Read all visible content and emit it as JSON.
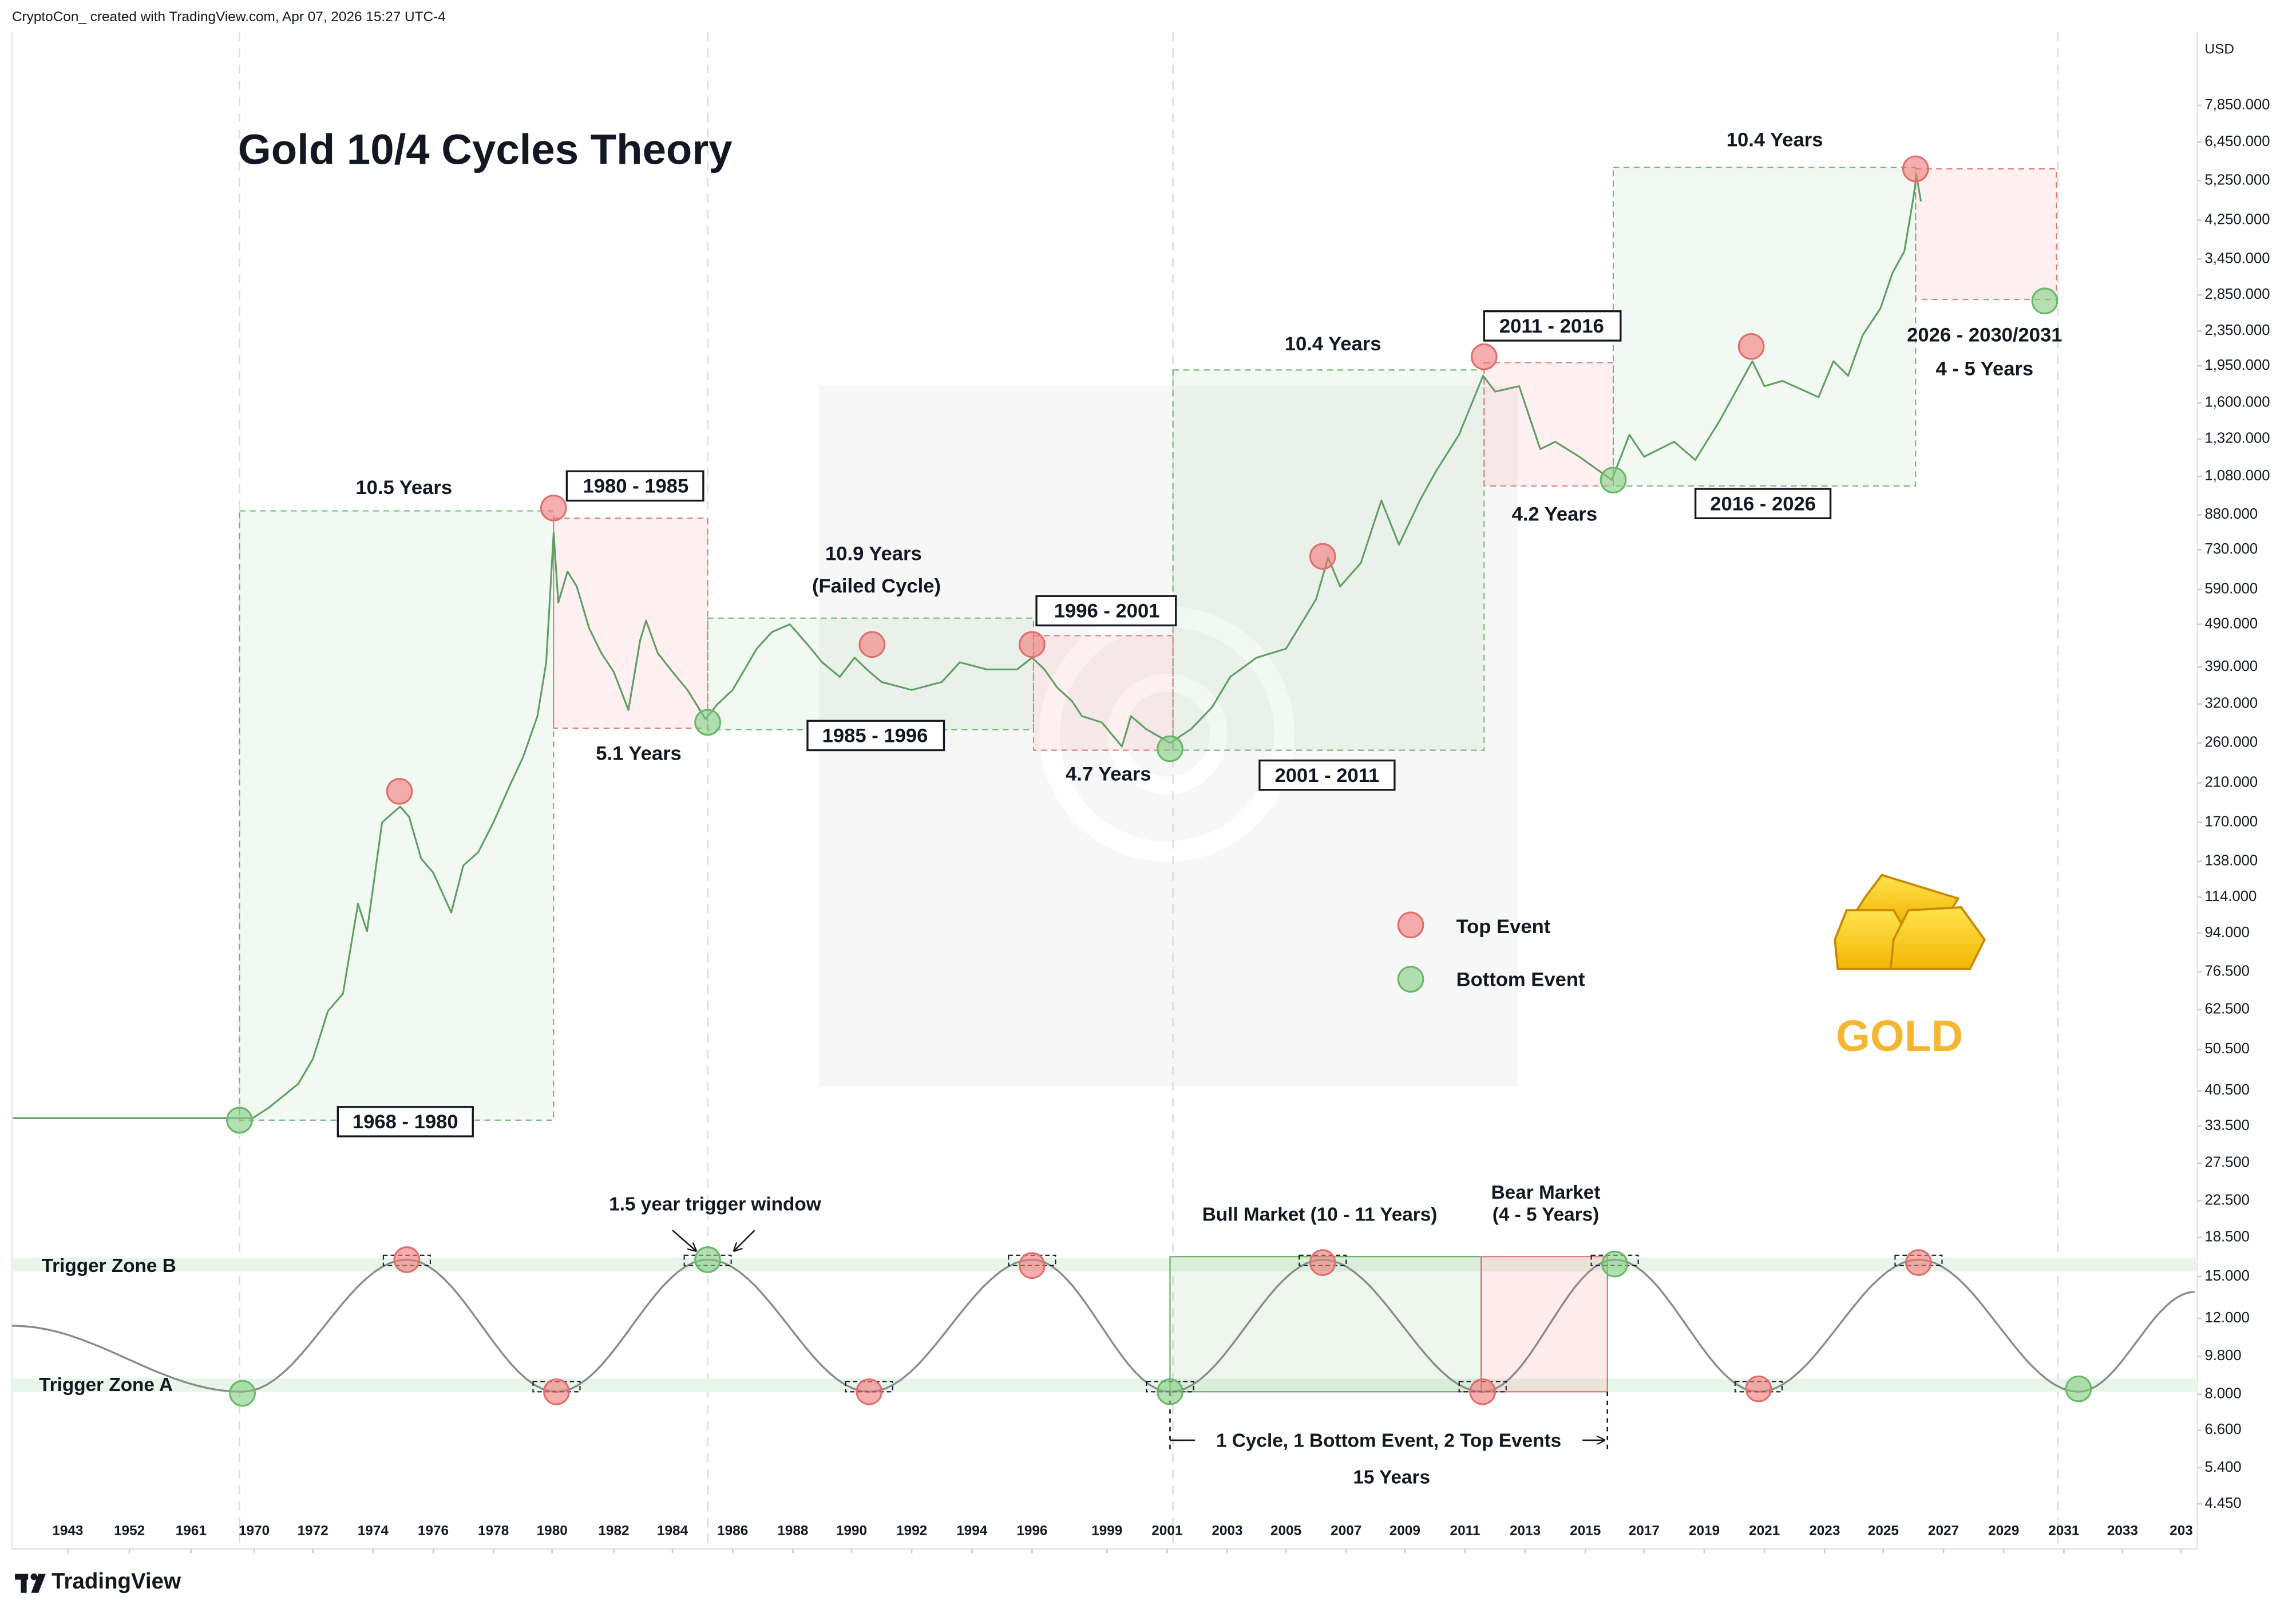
{
  "header": "CryptoCon_ created with TradingView.com, Apr 07, 2026 15:27 UTC-4",
  "footer_logo": "TradingView",
  "chart_data": {
    "type": "line",
    "title": "Gold 10/4 Cycles Theory",
    "currency": "USD",
    "log_scale": true,
    "grid": false,
    "x": [
      1935,
      1968.5,
      1969.8,
      1970.5,
      1971.5,
      1972,
      1972.5,
      1973,
      1973.5,
      1973.8,
      1974.3,
      1974.9,
      1975.2,
      1975.6,
      1976,
      1976.6,
      1977,
      1977.5,
      1978,
      1978.6,
      1979,
      1979.5,
      1979.8,
      1980.05,
      1980.2,
      1980.5,
      1980.8,
      1981.2,
      1981.6,
      1982,
      1982.5,
      1982.9,
      1983.1,
      1983.5,
      1984,
      1984.5,
      1985.1,
      1985.5,
      1986,
      1986.8,
      1987.3,
      1987.9,
      1988.5,
      1989,
      1989.6,
      1990.1,
      1990.6,
      1991,
      1992,
      1993,
      1993.6,
      1994.5,
      1995.5,
      1996,
      1996.5,
      1997,
      1997.6,
      1998,
      1998.8,
      1999.5,
      1999.8,
      2000.3,
      2001.1,
      2001.8,
      2002.5,
      2003.1,
      2004,
      2005,
      2006,
      2006.4,
      2006.8,
      2007.5,
      2008.2,
      2008.8,
      2009.5,
      2010,
      2010.8,
      2011.6,
      2012,
      2012.8,
      2013.5,
      2014,
      2014.8,
      2015.9,
      2016.5,
      2017,
      2018,
      2018.7,
      2019.5,
      2020.6,
      2021,
      2021.6,
      2022.8,
      2023.3,
      2023.8,
      2024.3,
      2024.9,
      2025.3,
      2025.7,
      2026,
      2026.1,
      2026.25
    ],
    "series": [
      {
        "color": "#5f9e62",
        "values": [
          35,
          35,
          35,
          37,
          42,
          48,
          62,
          68,
          110,
          95,
          170,
          185,
          175,
          140,
          130,
          105,
          135,
          145,
          170,
          210,
          240,
          300,
          400,
          800,
          550,
          650,
          600,
          480,
          420,
          380,
          310,
          450,
          500,
          420,
          380,
          345,
          295,
          320,
          345,
          430,
          470,
          490,
          440,
          400,
          370,
          410,
          380,
          360,
          345,
          360,
          400,
          385,
          385,
          410,
          385,
          350,
          325,
          300,
          290,
          255,
          300,
          280,
          260,
          280,
          315,
          370,
          410,
          430,
          560,
          700,
          600,
          680,
          950,
          750,
          950,
          1100,
          1350,
          1850,
          1700,
          1750,
          1250,
          1300,
          1200,
          1060,
          1350,
          1200,
          1300,
          1180,
          1450,
          2000,
          1750,
          1800,
          1650,
          2000,
          1850,
          2300,
          2650,
          3200,
          3600,
          4800,
          5400,
          4700
        ]
      }
    ],
    "xlim": [
      1935,
      2035.5
    ],
    "xticks": [
      1943,
      1952,
      1961,
      1970,
      1972,
      1974,
      1976,
      1978,
      1980,
      1982,
      1984,
      1986,
      1988,
      1990,
      1992,
      1994,
      1996,
      1999,
      2001,
      2003,
      2005,
      2007,
      2009,
      2011,
      2013,
      2015,
      2017,
      2019,
      2021,
      2023,
      2025,
      2027,
      2029,
      2031,
      2033,
      {
        "value": 2035,
        "label": "203"
      }
    ],
    "ylim": [
      3.5,
      11600
    ],
    "yticks": [
      {
        "value": 7850,
        "label": "7,850.000"
      },
      {
        "value": 6450,
        "label": "6,450.000"
      },
      {
        "value": 5250,
        "label": "5,250.000"
      },
      {
        "value": 4250,
        "label": "4,250.000"
      },
      {
        "value": 3450,
        "label": "3,450.000"
      },
      {
        "value": 2850,
        "label": "2,850.000"
      },
      {
        "value": 2350,
        "label": "2,350.000"
      },
      {
        "value": 1950,
        "label": "1,950.000"
      },
      {
        "value": 1600,
        "label": "1,600.000"
      },
      {
        "value": 1320,
        "label": "1,320.000"
      },
      {
        "value": 1080,
        "label": "1,080.000"
      },
      {
        "value": 880,
        "label": "880.000"
      },
      {
        "value": 730,
        "label": "730.000"
      },
      {
        "value": 590,
        "label": "590.000"
      },
      {
        "value": 490,
        "label": "490.000"
      },
      {
        "value": 390,
        "label": "390.000"
      },
      {
        "value": 320,
        "label": "320.000"
      },
      {
        "value": 260,
        "label": "260.000"
      },
      {
        "value": 210,
        "label": "210.000"
      },
      {
        "value": 170,
        "label": "170.000"
      },
      {
        "value": 138,
        "label": "138.000"
      },
      {
        "value": 114,
        "label": "114.000"
      },
      {
        "value": 94,
        "label": "94.000"
      },
      {
        "value": 76.5,
        "label": "76.500"
      },
      {
        "value": 62.5,
        "label": "62.500"
      },
      {
        "value": 50.5,
        "label": "50.500"
      },
      {
        "value": 40.5,
        "label": "40.500"
      },
      {
        "value": 33.5,
        "label": "33.500"
      },
      {
        "value": 27.5,
        "label": "27.500"
      },
      {
        "value": 22.5,
        "label": "22.500"
      },
      {
        "value": 18.5,
        "label": "18.500"
      },
      {
        "value": 15,
        "label": "15.000"
      },
      {
        "value": 12,
        "label": "12.000"
      },
      {
        "value": 9.8,
        "label": "9.800"
      },
      {
        "value": 8,
        "label": "8.000"
      },
      {
        "value": 6.6,
        "label": "6.600"
      },
      {
        "value": 5.4,
        "label": "5.400"
      },
      {
        "value": 4.45,
        "label": "4.450"
      }
    ],
    "annotations": {
      "cycle_1968": "10.5 Years",
      "range_1968": "1968 - 1980",
      "bear_1980": "1980 - 1985",
      "bear_1980_len": "5.1 Years",
      "cycle_1985": "10.9 Years",
      "cycle_1985_note": "(Failed Cycle)",
      "range_1985": "1985 - 1996",
      "bear_1996": "1996 - 2001",
      "bear_1996_len": "4.7 Years",
      "cycle_2001": "10.4 Years",
      "range_2001": "2001 - 2011",
      "bear_2011": "2011 - 2016",
      "bear_2011_len": "4.2 Years",
      "cycle_2016": "10.4 Years",
      "range_2016": "2016 - 2026",
      "bear_2026": "2026 - 2030/2031",
      "bear_2026_len": "4 - 5 Years"
    },
    "legend": {
      "top": "Top Event",
      "bottom": "Bottom Event"
    },
    "brand": "GOLD",
    "lower_panel": {
      "zone_b": "Trigger Zone B",
      "zone_a": "Trigger Zone A",
      "window": "1.5 year trigger window",
      "bull": "Bull Market (10 - 11 Years)",
      "bear_1": "Bear Market",
      "bear_2": "(4 - 5 Years)",
      "cycle": "1 Cycle, 1 Bottom Event, 2 Top Events",
      "cycle_years": "15 Years"
    }
  }
}
